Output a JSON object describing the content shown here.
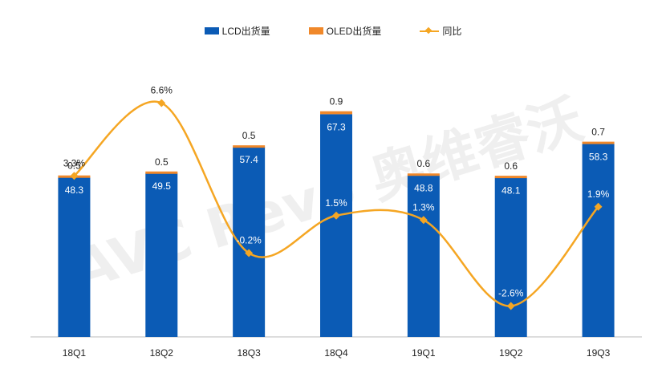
{
  "legend": {
    "lcd": "LCD出货量",
    "oled": "OLED出货量",
    "yoy": "同比"
  },
  "watermark": "AVC Revo 奥维睿沃",
  "colors": {
    "lcd": "#0B5BB5",
    "oled": "#F0882A",
    "yoy": "#F5A623",
    "axis": "#BBBBBB",
    "label": "#222222"
  },
  "chart_data": {
    "type": "bar",
    "stacked": true,
    "categories": [
      "18Q1",
      "18Q2",
      "18Q3",
      "18Q4",
      "19Q1",
      "19Q2",
      "19Q3"
    ],
    "series": [
      {
        "name": "LCD出货量",
        "values": [
          48.3,
          49.5,
          57.4,
          67.3,
          48.8,
          48.1,
          58.3
        ],
        "labels": [
          "48.3",
          "49.5",
          "57.4",
          "67.3",
          "48.8",
          "48.1",
          "58.3"
        ]
      },
      {
        "name": "OLED出货量",
        "values": [
          0.5,
          0.5,
          0.5,
          0.9,
          0.6,
          0.6,
          0.7
        ],
        "labels": [
          "0.5",
          "0.5",
          "0.5",
          "0.9",
          "0.6",
          "0.6",
          "0.7"
        ]
      }
    ],
    "line": {
      "name": "同比",
      "values": [
        3.3,
        6.6,
        -0.2,
        1.5,
        1.3,
        -2.6,
        1.9
      ],
      "labels": [
        "3.3%",
        "6.6%",
        "-0.2%",
        "1.5%",
        "1.3%",
        "-2.6%",
        "1.9%"
      ],
      "axis": "secondary",
      "smooth": true
    },
    "ylim": [
      0,
      80
    ],
    "y2lim": [
      -4,
      8
    ],
    "grid": false,
    "legend_position": "top"
  }
}
